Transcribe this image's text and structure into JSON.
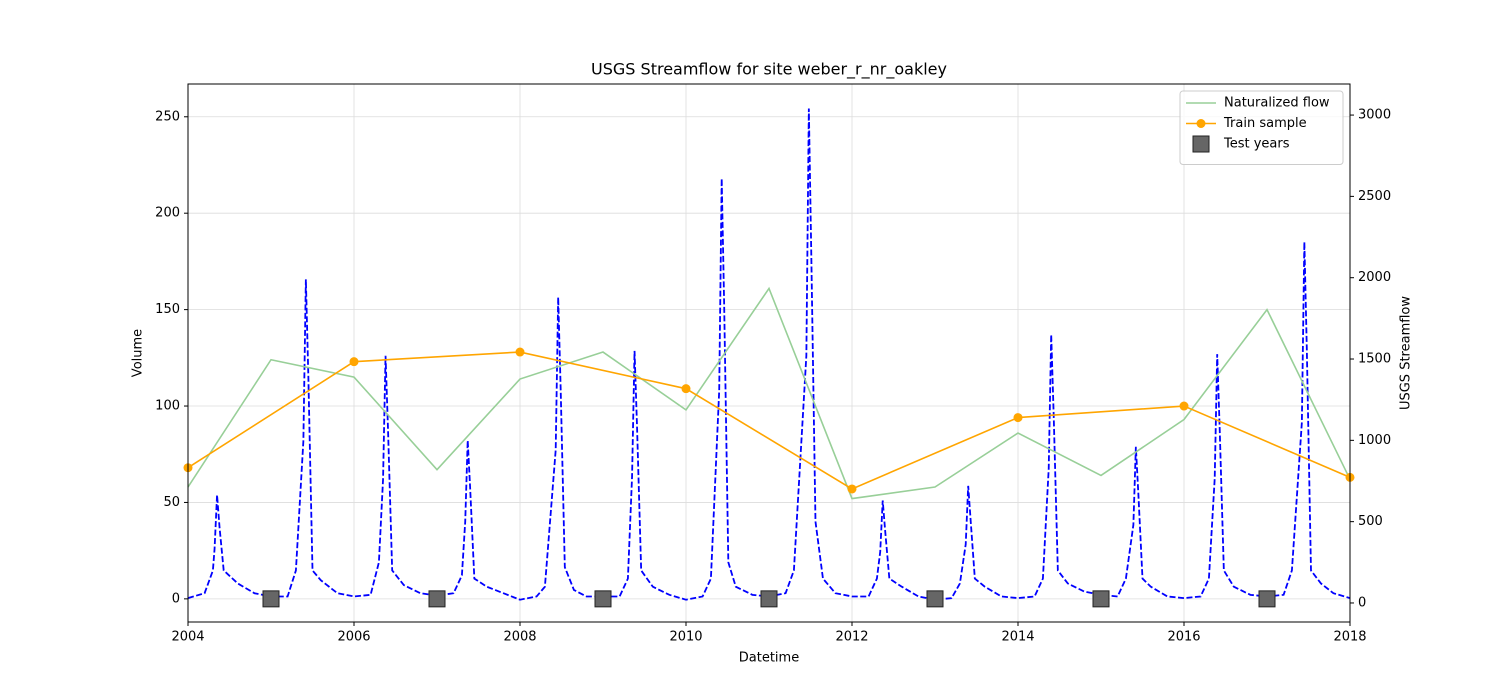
{
  "chart_data": {
    "type": "line",
    "title": "USGS Streamflow for site weber_r_nr_oakley",
    "xlabel": "Datetime",
    "ylabel": "Volume",
    "y2label": "USGS Streamflow",
    "xlim": [
      2004,
      2018
    ],
    "xticks": [
      2004,
      2006,
      2008,
      2010,
      2012,
      2014,
      2016,
      2018
    ],
    "ylim": [
      -12,
      267
    ],
    "yticks": [
      0,
      50,
      100,
      150,
      200,
      250
    ],
    "y2lim": [
      -117,
      3191
    ],
    "y2ticks": [
      0,
      500,
      1000,
      1500,
      2000,
      2500,
      3000
    ],
    "grid": true,
    "legend": "upper right",
    "series": [
      {
        "color": "blue",
        "axis": "y2",
        "line": "dashed",
        "x": [
          2004.0,
          2004.2,
          2004.3,
          2004.32,
          2004.35,
          2004.38,
          2004.43,
          2004.6,
          2004.8,
          2005.0,
          2005.2,
          2005.3,
          2005.39,
          2005.42,
          2005.45,
          2005.5,
          2005.6,
          2005.8,
          2006.0,
          2006.2,
          2006.3,
          2006.35,
          2006.38,
          2006.41,
          2006.46,
          2006.6,
          2006.8,
          2007.0,
          2007.2,
          2007.3,
          2007.34,
          2007.37,
          2007.4,
          2007.45,
          2007.6,
          2007.8,
          2008.0,
          2008.2,
          2008.3,
          2008.43,
          2008.46,
          2008.49,
          2008.54,
          2008.65,
          2008.8,
          2009.0,
          2009.2,
          2009.3,
          2009.35,
          2009.38,
          2009.41,
          2009.46,
          2009.6,
          2009.8,
          2010.0,
          2010.2,
          2010.3,
          2010.4,
          2010.43,
          2010.46,
          2010.51,
          2010.6,
          2010.8,
          2011.0,
          2011.2,
          2011.3,
          2011.45,
          2011.48,
          2011.51,
          2011.56,
          2011.65,
          2011.8,
          2012.0,
          2012.2,
          2012.3,
          2012.34,
          2012.37,
          2012.4,
          2012.45,
          2012.6,
          2012.8,
          2013.0,
          2013.2,
          2013.3,
          2013.37,
          2013.4,
          2013.43,
          2013.48,
          2013.6,
          2013.8,
          2014.0,
          2014.2,
          2014.3,
          2014.37,
          2014.4,
          2014.43,
          2014.48,
          2014.6,
          2014.8,
          2015.0,
          2015.2,
          2015.3,
          2015.39,
          2015.42,
          2015.45,
          2015.5,
          2015.6,
          2015.8,
          2016.0,
          2016.2,
          2016.3,
          2016.37,
          2016.4,
          2016.43,
          2016.48,
          2016.6,
          2016.8,
          2017.0,
          2017.2,
          2017.3,
          2017.42,
          2017.45,
          2017.48,
          2017.53,
          2017.65,
          2017.8,
          2018.0
        ],
        "values": [
          30,
          60,
          200,
          332,
          664,
          465,
          200,
          120,
          60,
          40,
          40,
          200,
          995,
          1990,
          1393,
          200,
          140,
          60,
          40,
          50,
          250,
          760,
          1520,
          1064,
          200,
          110,
          60,
          45,
          60,
          170,
          500,
          1000,
          700,
          150,
          100,
          60,
          20,
          40,
          100,
          940,
          1880,
          1316,
          220,
          80,
          40,
          40,
          40,
          150,
          775,
          1550,
          1085,
          200,
          100,
          50,
          20,
          40,
          150,
          1305,
          2610,
          1827,
          250,
          100,
          50,
          40,
          60,
          200,
          1520,
          3040,
          2128,
          500,
          150,
          60,
          40,
          40,
          150,
          315,
          630,
          441,
          150,
          100,
          40,
          20,
          30,
          120,
          360,
          720,
          504,
          150,
          100,
          40,
          30,
          40,
          150,
          825,
          1650,
          1155,
          200,
          120,
          70,
          50,
          40,
          150,
          480,
          960,
          672,
          150,
          100,
          40,
          30,
          40,
          150,
          765,
          1530,
          1071,
          200,
          100,
          50,
          40,
          50,
          200,
          1110,
          2220,
          1554,
          200,
          120,
          60,
          30
        ]
      },
      {
        "name": "Naturalized flow",
        "color": "#98cf98",
        "line": "solid",
        "x": [
          2004,
          2005,
          2006,
          2007,
          2008,
          2009,
          2010,
          2011,
          2012,
          2013,
          2014,
          2015,
          2016,
          2017,
          2018
        ],
        "values": [
          58,
          124,
          115,
          67,
          114,
          128,
          98,
          161,
          52,
          58,
          86,
          64,
          93,
          150,
          62
        ]
      },
      {
        "name": "Train sample",
        "color": "orange",
        "line": "solid",
        "marker": "circle",
        "x": [
          2004,
          2006,
          2008,
          2010,
          2012,
          2014,
          2016,
          2018
        ],
        "values": [
          68,
          123,
          128,
          109,
          57,
          94,
          100,
          63
        ]
      },
      {
        "name": "Test years",
        "color": "#666666",
        "marker": "square",
        "x": [
          2005,
          2007,
          2009,
          2011,
          2013,
          2015,
          2017
        ],
        "values": [
          0,
          0,
          0,
          0,
          0,
          0,
          0
        ]
      }
    ]
  }
}
